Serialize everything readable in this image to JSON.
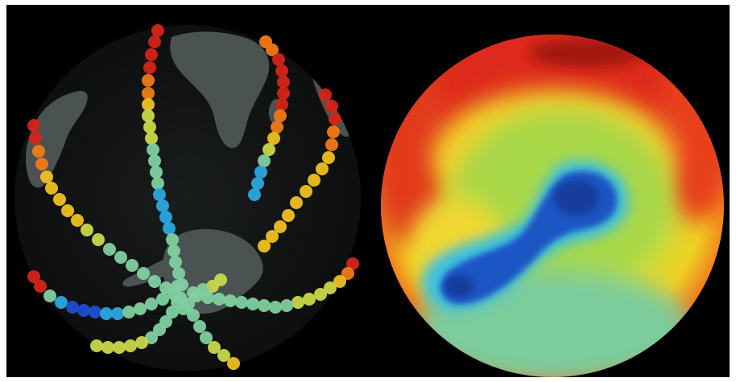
{
  "figure": {
    "background_color": "#000000",
    "frame_color": "#ffffff",
    "left_panel": {
      "description_icon": "globe-with-flight-track-dots-icon",
      "landmass_color": "#4a5252",
      "track_color_scale": [
        "#1f4fd0",
        "#2aa8e0",
        "#7fd0a0",
        "#c8d84a",
        "#f0c020",
        "#f07a18",
        "#d42418"
      ]
    },
    "right_panel": {
      "description_icon": "ozone-hole-globe-icon",
      "color_scale": [
        "#d81e1e",
        "#f0501e",
        "#f0d020",
        "#9cd84a",
        "#46c8d8",
        "#1e64c8",
        "#143c9c"
      ]
    }
  }
}
